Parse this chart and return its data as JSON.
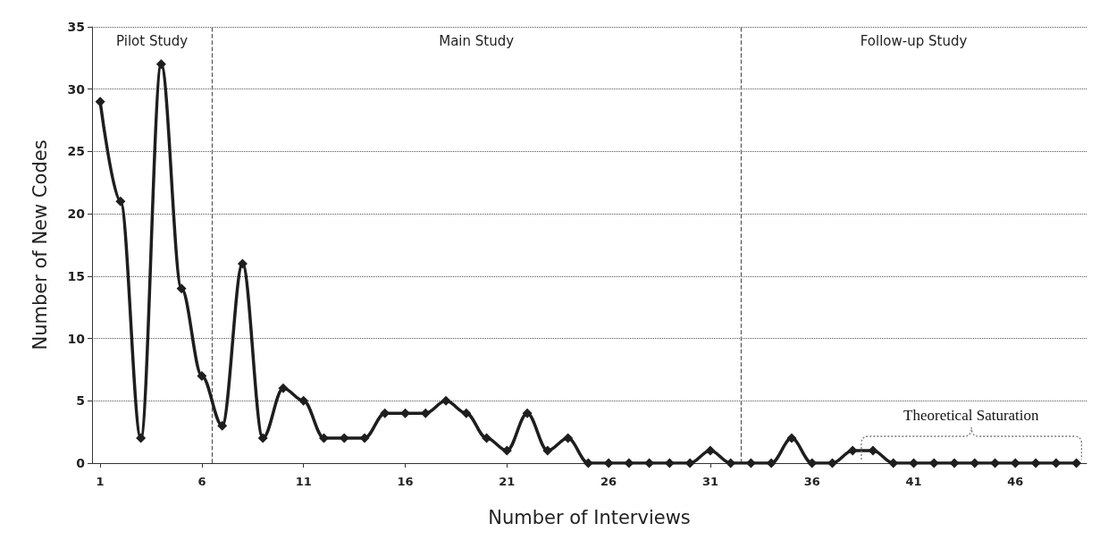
{
  "chart_data": {
    "type": "line",
    "xlabel": "Number of Interviews",
    "ylabel": "Number of New Codes",
    "x": [
      1,
      2,
      3,
      4,
      5,
      6,
      7,
      8,
      9,
      10,
      11,
      12,
      13,
      14,
      15,
      16,
      17,
      18,
      19,
      20,
      21,
      22,
      23,
      24,
      25,
      26,
      27,
      28,
      29,
      30,
      31,
      32,
      33,
      34,
      35,
      36,
      37,
      38,
      39,
      40,
      41,
      42,
      43,
      44,
      45,
      46,
      47,
      48,
      49
    ],
    "series": [
      {
        "color": "#1e1e1e",
        "values": [
          29,
          21,
          2,
          32,
          14,
          7,
          3,
          16,
          2,
          6,
          5,
          2,
          2,
          2,
          4,
          4,
          4,
          5,
          4,
          2,
          1,
          4,
          1,
          2,
          0,
          0,
          0,
          0,
          0,
          0,
          1,
          0,
          0,
          0,
          2,
          0,
          0,
          1,
          1,
          0,
          0,
          0,
          0,
          0,
          0,
          0,
          0,
          0,
          0
        ]
      }
    ],
    "xlim": [
      0.6,
      49.5
    ],
    "xticks": [
      1,
      6,
      11,
      16,
      21,
      26,
      31,
      36,
      41,
      46
    ],
    "ylim": [
      0,
      35
    ],
    "yticks": [
      0,
      5,
      10,
      15,
      20,
      25,
      30,
      35
    ],
    "grid": "y",
    "marker": "diamond",
    "line_style": "solid",
    "ref_lines": [
      {
        "axis": "x",
        "value": 6.5,
        "color": "#555555",
        "line_style": "dashed"
      },
      {
        "axis": "x",
        "value": 32.5,
        "color": "#555555",
        "line_style": "dashed"
      }
    ],
    "annotations": [
      "Pilot Study",
      "Main Study",
      "Follow-up Study",
      "Theoretical Saturation"
    ]
  }
}
